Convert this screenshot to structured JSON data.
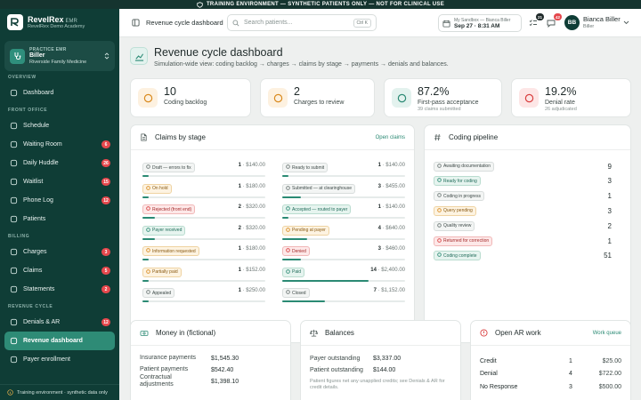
{
  "banner": {
    "text": "TRAINING ENVIRONMENT — SYNTHETIC PATIENTS ONLY — NOT FOR CLINICAL USE"
  },
  "brand": {
    "name": "RevelRex",
    "tag": "EMR",
    "org": "RevelRex Demo Academy"
  },
  "practice": {
    "label": "PRACTICE EMR",
    "name": "Biller",
    "org": "Riverside Family Medicine"
  },
  "sidebar": {
    "sections": [
      {
        "title": "OVERVIEW",
        "items": [
          {
            "label": "Dashboard",
            "icon": "grid-icon",
            "badge": ""
          }
        ]
      },
      {
        "title": "FRONT OFFICE",
        "items": [
          {
            "label": "Schedule",
            "icon": "calendar-icon",
            "badge": ""
          },
          {
            "label": "Waiting Room",
            "icon": "clock-icon",
            "badge": "6"
          },
          {
            "label": "Daily Huddle",
            "icon": "users-icon",
            "badge": "26"
          },
          {
            "label": "Waitlist",
            "icon": "list-icon",
            "badge": "15"
          },
          {
            "label": "Phone Log",
            "icon": "phone-icon",
            "badge": "12"
          },
          {
            "label": "Patients",
            "icon": "user-icon",
            "badge": ""
          }
        ]
      },
      {
        "title": "BILLING",
        "items": [
          {
            "label": "Charges",
            "icon": "dollar-icon",
            "badge": "3"
          },
          {
            "label": "Claims",
            "icon": "document-icon",
            "badge": "5"
          },
          {
            "label": "Statements",
            "icon": "receipt-icon",
            "badge": "2"
          }
        ]
      },
      {
        "title": "REVENUE CYCLE",
        "items": [
          {
            "label": "Denials & AR",
            "icon": "alert-icon",
            "badge": "12"
          },
          {
            "label": "Revenue dashboard",
            "icon": "chart-icon",
            "badge": "",
            "active": true
          },
          {
            "label": "Payer enrollment",
            "icon": "shield-icon",
            "badge": ""
          }
        ]
      }
    ],
    "footer": "Training environment · synthetic data only"
  },
  "topbar": {
    "title": "Revenue cycle dashboard",
    "search_placeholder": "Search patients...",
    "search_shortcut": "Ctrl K",
    "sandbox_line1": "My Sandbox — Bianca Biller",
    "sandbox_line2": "Sep 27 · 8:31 AM",
    "tasks_badge": "21",
    "messages_badge": "42",
    "avatar_initials": "BB",
    "user_name": "Bianca Biller",
    "user_role": "Biller"
  },
  "page": {
    "title": "Revenue cycle dashboard",
    "subtitle": "Simulation-wide view: coding backlog → charges → claims by stage → payments → denials and balances."
  },
  "kpis": [
    {
      "value": "10",
      "label": "Coding backlog",
      "sub": "",
      "icon": "hash-icon",
      "color": "#d98a1e",
      "bg": "#fdf1e0"
    },
    {
      "value": "2",
      "label": "Charges to review",
      "sub": "",
      "icon": "file-dollar-icon",
      "color": "#d98a1e",
      "bg": "#fdf1e0"
    },
    {
      "value": "87.2%",
      "label": "First-pass acceptance",
      "sub": "39 claims submitted",
      "icon": "target-icon",
      "color": "#2b8a74",
      "bg": "#e3f2ee"
    },
    {
      "value": "19.2%",
      "label": "Denial rate",
      "sub": "26 adjudicated",
      "icon": "x-circle-icon",
      "color": "#d93e3e",
      "bg": "#fde6e6"
    }
  ],
  "claims_card": {
    "title": "Claims by stage",
    "link": "Open claims",
    "stages": [
      {
        "label": "Draft — errors to fix",
        "count": "1",
        "amount": "$140.00",
        "share": 0.05,
        "tone": "gray",
        "icon": "pencil-icon"
      },
      {
        "label": "Ready to submit",
        "count": "1",
        "amount": "$140.00",
        "share": 0.05,
        "tone": "gray",
        "icon": "send-icon"
      },
      {
        "label": "On hold",
        "count": "1",
        "amount": "$180.00",
        "share": 0.05,
        "tone": "amber",
        "icon": "pause-icon"
      },
      {
        "label": "Submitted — at clearinghouse",
        "count": "3",
        "amount": "$455.00",
        "share": 0.15,
        "tone": "gray",
        "icon": "send-icon"
      },
      {
        "label": "Rejected (front end)",
        "count": "2",
        "amount": "$320.00",
        "share": 0.1,
        "tone": "red",
        "icon": "x-icon"
      },
      {
        "label": "Accepted — routed to payer",
        "count": "1",
        "amount": "$140.00",
        "share": 0.05,
        "tone": "green",
        "icon": "check-icon"
      },
      {
        "label": "Payer received",
        "count": "2",
        "amount": "$320.00",
        "share": 0.1,
        "tone": "green",
        "icon": "inbox-icon"
      },
      {
        "label": "Pending at payer",
        "count": "4",
        "amount": "$640.00",
        "share": 0.2,
        "tone": "amber",
        "icon": "hourglass-icon"
      },
      {
        "label": "Information requested",
        "count": "1",
        "amount": "$180.00",
        "share": 0.05,
        "tone": "amber",
        "icon": "info-icon"
      },
      {
        "label": "Denied",
        "count": "3",
        "amount": "$460.00",
        "share": 0.15,
        "tone": "red",
        "icon": "x-icon"
      },
      {
        "label": "Partially paid",
        "count": "1",
        "amount": "$152.00",
        "share": 0.05,
        "tone": "amber",
        "icon": "half-icon"
      },
      {
        "label": "Paid",
        "count": "14",
        "amount": "$2,400.00",
        "share": 0.7,
        "tone": "green",
        "icon": "check-icon"
      },
      {
        "label": "Appealed",
        "count": "1",
        "amount": "$250.00",
        "share": 0.05,
        "tone": "gray",
        "icon": "refresh-icon"
      },
      {
        "label": "Closed",
        "count": "7",
        "amount": "$1,152.00",
        "share": 0.35,
        "tone": "gray",
        "icon": "archive-icon"
      }
    ]
  },
  "coding_card": {
    "title": "Coding pipeline",
    "stages": [
      {
        "label": "Awaiting documentation",
        "count": "9",
        "tone": "gray",
        "icon": "doc-icon"
      },
      {
        "label": "Ready for coding",
        "count": "3",
        "tone": "green",
        "icon": "check-icon"
      },
      {
        "label": "Coding in progress",
        "count": "1",
        "tone": "gray",
        "icon": "edit-icon"
      },
      {
        "label": "Query pending",
        "count": "3",
        "tone": "amber",
        "icon": "question-icon"
      },
      {
        "label": "Quality review",
        "count": "2",
        "tone": "gray",
        "icon": "eye-icon"
      },
      {
        "label": "Returned for correction",
        "count": "1",
        "tone": "red",
        "icon": "return-icon"
      },
      {
        "label": "Coding complete",
        "count": "51",
        "tone": "green",
        "icon": "check-icon"
      }
    ]
  },
  "money_card": {
    "title": "Money in (fictional)",
    "rows": [
      {
        "label": "Insurance payments",
        "value": "$1,545.30"
      },
      {
        "label": "Patient payments",
        "value": "$542.40"
      },
      {
        "label": "Contractual adjustments",
        "value": "$1,398.10"
      }
    ]
  },
  "balances_card": {
    "title": "Balances",
    "rows": [
      {
        "label": "Payer outstanding",
        "value": "$3,337.00"
      },
      {
        "label": "Patient outstanding",
        "value": "$144.00"
      }
    ],
    "note": "Patient figures net any unapplied credits; see Denials & AR for credit details."
  },
  "ar_card": {
    "title": "Open AR work",
    "link": "Work queue",
    "rows": [
      {
        "label": "Credit",
        "count": "1",
        "amount": "$25.00"
      },
      {
        "label": "Denial",
        "count": "4",
        "amount": "$722.00"
      },
      {
        "label": "No Response",
        "count": "3",
        "amount": "$500.00"
      }
    ]
  },
  "colors": {
    "brand": "#0f3d36",
    "accent": "#2b8a74",
    "danger": "#e5484d",
    "warning": "#d98a1e"
  }
}
